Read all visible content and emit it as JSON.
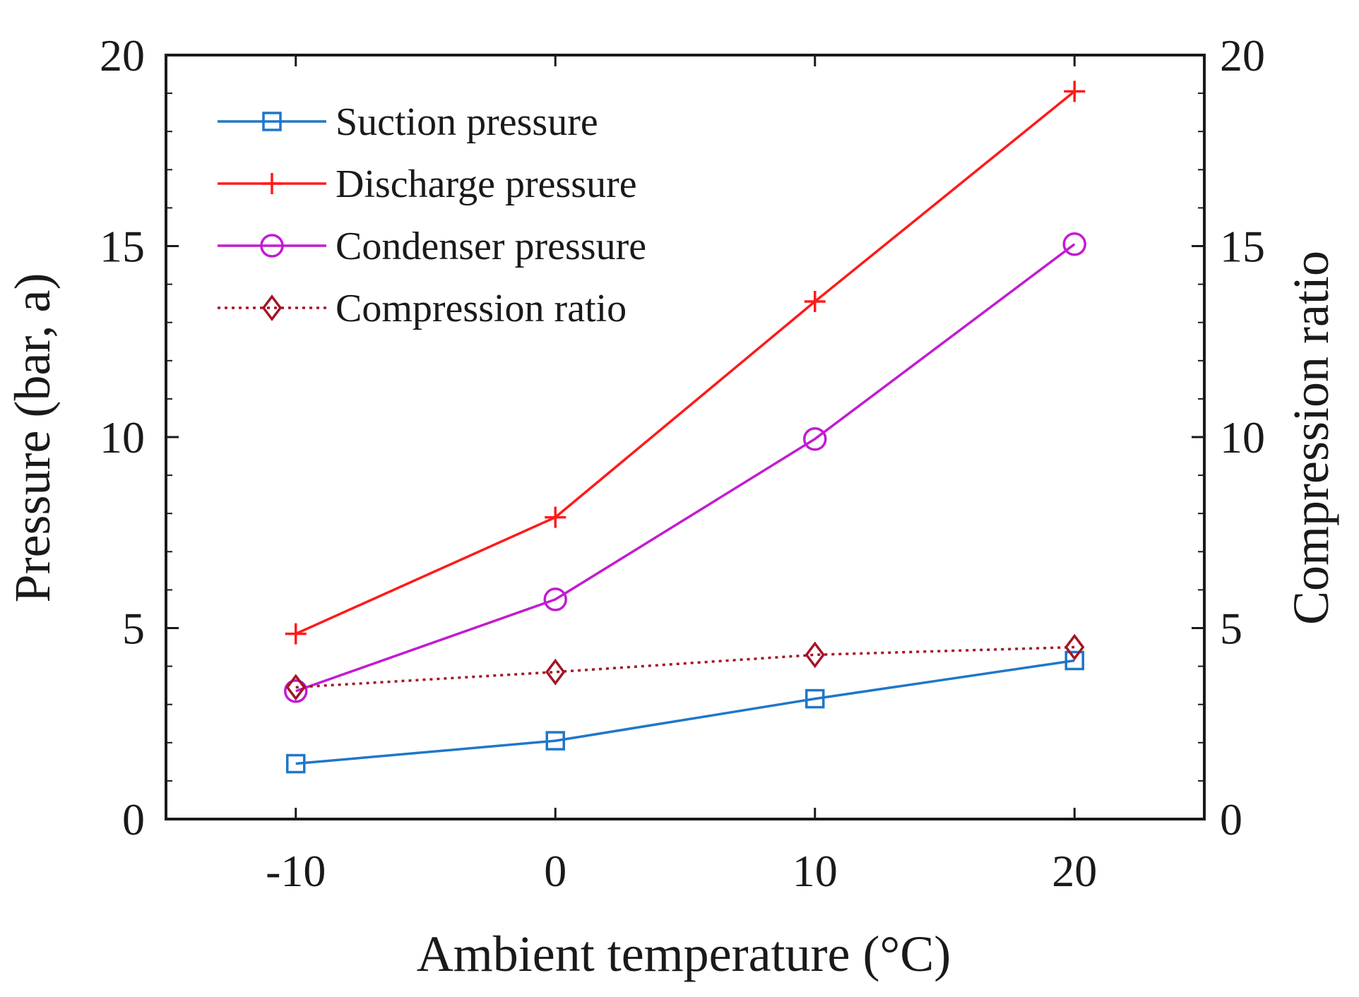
{
  "chart_data": {
    "type": "line",
    "x": [
      -10,
      0,
      10,
      20
    ],
    "xlabel": "Ambient temperature (°C)",
    "ylabel": "Pressure (bar, a)",
    "y2label": "Compression ratio",
    "xlim": [
      -15,
      25
    ],
    "ylim": [
      0,
      20
    ],
    "y2lim": [
      0,
      20
    ],
    "xticks": [
      -10,
      0,
      10,
      20
    ],
    "yticks": [
      0,
      5,
      10,
      15,
      20
    ],
    "y2ticks": [
      0,
      5,
      10,
      15,
      20
    ],
    "grid": false,
    "legend_position": "top-left",
    "series": [
      {
        "name": "Suction pressure",
        "axis": "left",
        "values": [
          1.45,
          2.05,
          3.15,
          4.15
        ],
        "color": "#1f77c8",
        "marker": "square",
        "linestyle": "solid"
      },
      {
        "name": "Discharge pressure",
        "axis": "left",
        "values": [
          4.85,
          7.9,
          13.55,
          19.05
        ],
        "color": "#ff1a1a",
        "marker": "plus",
        "linestyle": "solid"
      },
      {
        "name": "Condenser pressure",
        "axis": "left",
        "values": [
          3.35,
          5.75,
          9.95,
          15.05
        ],
        "color": "#c21bd1",
        "marker": "circle",
        "linestyle": "solid"
      },
      {
        "name": "Compression ratio",
        "axis": "right",
        "values": [
          3.45,
          3.85,
          4.3,
          4.5
        ],
        "color": "#a31526",
        "marker": "diamond",
        "linestyle": "dotted"
      }
    ]
  }
}
